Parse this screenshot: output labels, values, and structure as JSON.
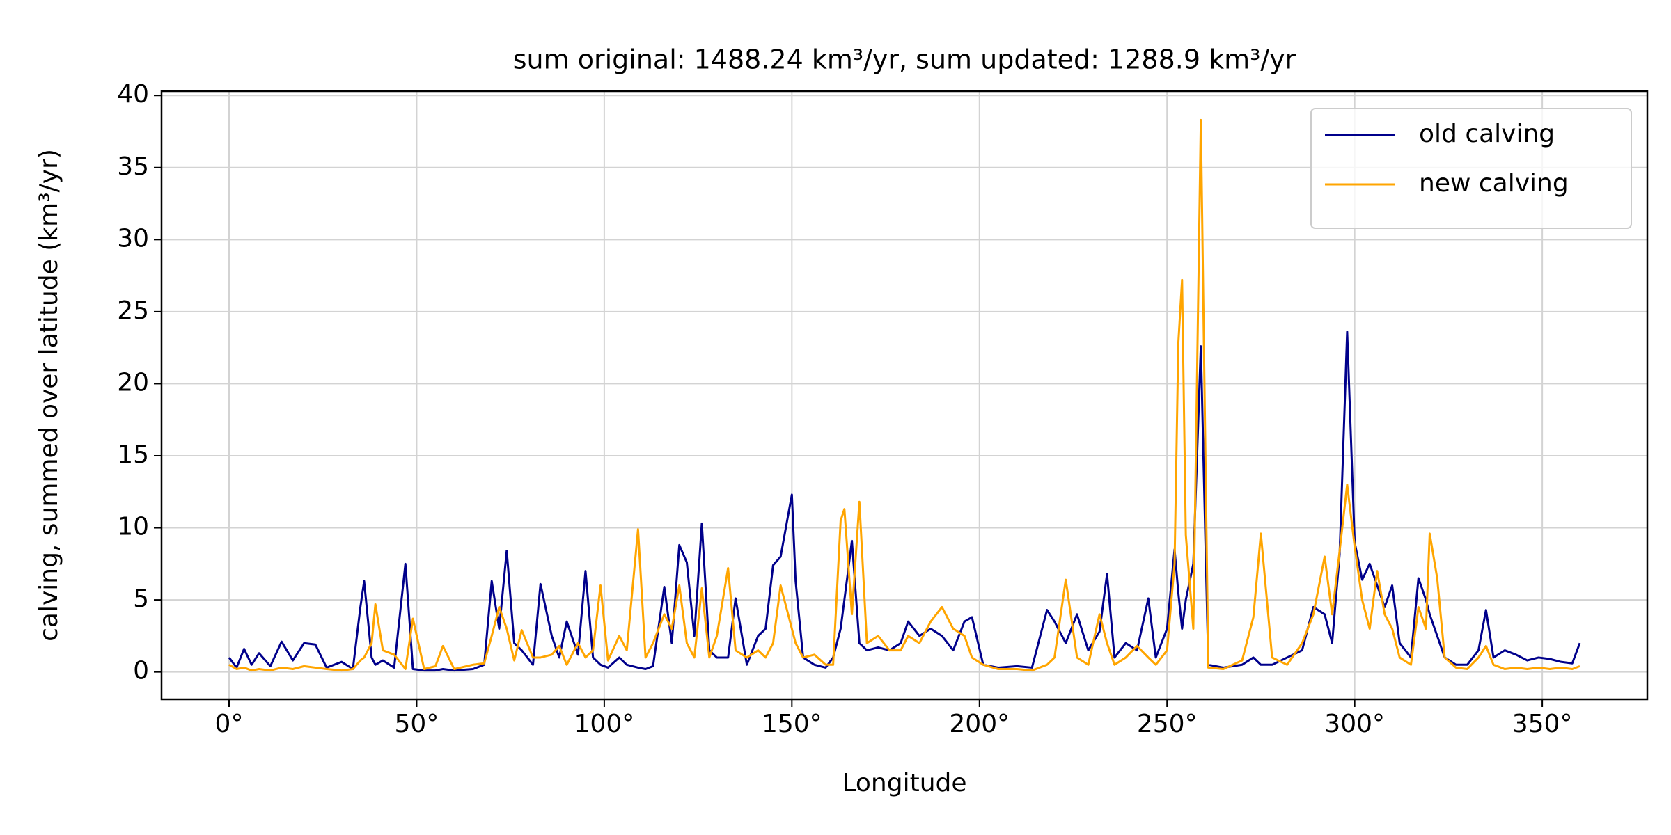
{
  "chart_data": {
    "type": "line",
    "title": "sum original: 1488.24 km³/yr, sum updated: 1288.9 km³/yr",
    "xlabel": "Longitude",
    "ylabel": "calving, summed over latitude (km³/yr)",
    "xlim": [
      -18,
      378
    ],
    "ylim": [
      -1.9,
      40.3
    ],
    "xticks": [
      {
        "value": 0,
        "label": "0°"
      },
      {
        "value": 50,
        "label": "50°"
      },
      {
        "value": 100,
        "label": "100°"
      },
      {
        "value": 150,
        "label": "150°"
      },
      {
        "value": 200,
        "label": "200°"
      },
      {
        "value": 250,
        "label": "250°"
      },
      {
        "value": 300,
        "label": "300°"
      },
      {
        "value": 350,
        "label": "350°"
      }
    ],
    "yticks": [
      0,
      5,
      10,
      15,
      20,
      25,
      30,
      35,
      40
    ],
    "grid": true,
    "legend": "upper right",
    "x": [
      0,
      2,
      4,
      6,
      8,
      11,
      14,
      17,
      20,
      23,
      26,
      30,
      33,
      35,
      36,
      38,
      39,
      41,
      44,
      47,
      49,
      52,
      55,
      57,
      60,
      65,
      68,
      70,
      72,
      74,
      76,
      78,
      81,
      83,
      86,
      88,
      90,
      93,
      95,
      97,
      99,
      101,
      104,
      106,
      109,
      111,
      113,
      116,
      118,
      120,
      122,
      124,
      126,
      128,
      130,
      133,
      135,
      138,
      141,
      143,
      145,
      147,
      150,
      151,
      153,
      156,
      159,
      161,
      163,
      164,
      166,
      168,
      170,
      173,
      176,
      179,
      181,
      184,
      187,
      190,
      193,
      196,
      198,
      201,
      205,
      210,
      214,
      218,
      220,
      223,
      226,
      229,
      232,
      234,
      236,
      239,
      242,
      245,
      247,
      250,
      252,
      253,
      254,
      255,
      257,
      259,
      261,
      265,
      270,
      273,
      275,
      278,
      282,
      286,
      289,
      292,
      294,
      296,
      298,
      300,
      302,
      304,
      306,
      308,
      310,
      312,
      315,
      317,
      319,
      320,
      322,
      324,
      327,
      330,
      333,
      335,
      337,
      340,
      343,
      346,
      349,
      352,
      355,
      358,
      360
    ],
    "series": [
      {
        "name": "old calving",
        "color": "#00008b",
        "values": [
          1.0,
          0.3,
          1.6,
          0.5,
          1.3,
          0.4,
          2.1,
          0.8,
          2.0,
          1.9,
          0.3,
          0.7,
          0.2,
          4.5,
          6.3,
          1.0,
          0.5,
          0.8,
          0.3,
          7.5,
          0.2,
          0.1,
          0.1,
          0.2,
          0.1,
          0.2,
          0.5,
          6.3,
          3.0,
          8.4,
          2.0,
          1.5,
          0.5,
          6.1,
          2.5,
          1.0,
          3.5,
          1.2,
          7.0,
          1.0,
          0.5,
          0.3,
          1.0,
          0.5,
          0.3,
          0.2,
          0.4,
          5.9,
          2.0,
          8.8,
          7.6,
          2.5,
          10.3,
          1.5,
          1.0,
          1.0,
          5.1,
          0.5,
          2.5,
          3.0,
          7.4,
          8.0,
          12.3,
          6.3,
          1.0,
          0.5,
          0.3,
          1.0,
          3.0,
          5.0,
          9.1,
          2.0,
          1.5,
          1.7,
          1.5,
          2.0,
          3.5,
          2.5,
          3.0,
          2.5,
          1.5,
          3.5,
          3.8,
          0.5,
          0.3,
          0.4,
          0.3,
          4.3,
          3.5,
          2.0,
          4.0,
          1.5,
          2.8,
          6.8,
          1.0,
          2.0,
          1.5,
          5.1,
          1.0,
          3.0,
          8.5,
          5.5,
          3.0,
          5.0,
          7.5,
          22.6,
          0.5,
          0.3,
          0.5,
          1.0,
          0.5,
          0.5,
          1.0,
          1.5,
          4.5,
          4.0,
          2.0,
          8.2,
          23.6,
          9.0,
          6.4,
          7.5,
          6.0,
          4.5,
          6.0,
          2.0,
          1.0,
          6.5,
          5.0,
          4.0,
          2.5,
          1.0,
          0.5,
          0.5,
          1.5,
          4.3,
          1.0,
          1.5,
          1.2,
          0.8,
          1.0,
          0.9,
          0.7,
          0.6,
          2.0
        ]
      },
      {
        "name": "new calving",
        "color": "#ffa500",
        "values": [
          0.5,
          0.2,
          0.3,
          0.1,
          0.2,
          0.1,
          0.3,
          0.2,
          0.4,
          0.3,
          0.2,
          0.1,
          0.2,
          0.8,
          1.0,
          2.0,
          4.7,
          1.5,
          1.2,
          0.2,
          3.7,
          0.2,
          0.4,
          1.8,
          0.2,
          0.5,
          0.6,
          2.5,
          4.5,
          3.0,
          0.8,
          2.9,
          1.0,
          1.0,
          1.2,
          1.8,
          0.5,
          2.0,
          1.0,
          1.5,
          6.0,
          0.8,
          2.5,
          1.5,
          9.9,
          1.0,
          2.0,
          4.0,
          3.0,
          6.0,
          2.0,
          1.0,
          5.8,
          1.0,
          2.5,
          7.2,
          1.5,
          1.0,
          1.5,
          1.0,
          2.0,
          6.0,
          3.0,
          2.0,
          1.0,
          1.2,
          0.5,
          0.5,
          10.5,
          11.3,
          4.0,
          11.8,
          2.0,
          2.5,
          1.5,
          1.5,
          2.5,
          2.0,
          3.5,
          4.5,
          3.0,
          2.5,
          1.0,
          0.5,
          0.2,
          0.2,
          0.1,
          0.5,
          1.0,
          6.4,
          1.0,
          0.5,
          4.0,
          2.0,
          0.5,
          1.0,
          1.8,
          1.0,
          0.5,
          1.5,
          7.5,
          22.8,
          27.2,
          9.5,
          3.0,
          38.3,
          0.3,
          0.2,
          0.8,
          3.8,
          9.6,
          1.0,
          0.5,
          2.0,
          4.0,
          8.0,
          4.0,
          8.4,
          13.0,
          8.7,
          5.0,
          3.0,
          7.0,
          4.0,
          3.0,
          1.0,
          0.5,
          4.5,
          3.0,
          9.6,
          6.5,
          1.0,
          0.3,
          0.2,
          1.0,
          1.8,
          0.5,
          0.2,
          0.3,
          0.2,
          0.3,
          0.2,
          0.3,
          0.2,
          0.4
        ]
      }
    ]
  }
}
